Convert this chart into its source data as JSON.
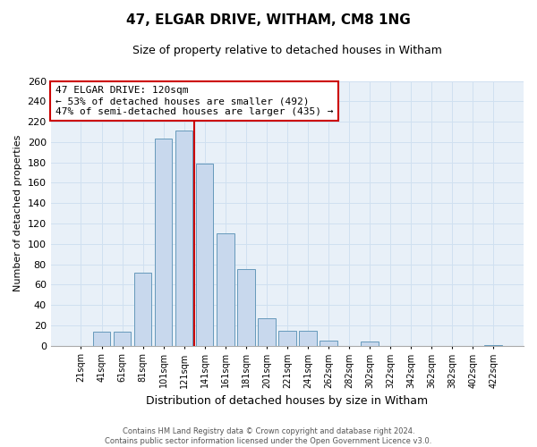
{
  "title": "47, ELGAR DRIVE, WITHAM, CM8 1NG",
  "subtitle": "Size of property relative to detached houses in Witham",
  "xlabel": "Distribution of detached houses by size in Witham",
  "ylabel": "Number of detached properties",
  "bar_labels": [
    "21sqm",
    "41sqm",
    "61sqm",
    "81sqm",
    "101sqm",
    "121sqm",
    "141sqm",
    "161sqm",
    "181sqm",
    "201sqm",
    "221sqm",
    "241sqm",
    "262sqm",
    "282sqm",
    "302sqm",
    "322sqm",
    "342sqm",
    "362sqm",
    "382sqm",
    "402sqm",
    "422sqm"
  ],
  "bar_values": [
    0,
    14,
    14,
    72,
    203,
    211,
    179,
    110,
    75,
    27,
    15,
    15,
    5,
    0,
    4,
    0,
    0,
    0,
    0,
    0,
    1
  ],
  "bar_color": "#c8d8ed",
  "bar_edge_color": "#6699bb",
  "vline_after_index": 5,
  "vline_color": "#cc0000",
  "annotation_title": "47 ELGAR DRIVE: 120sqm",
  "annotation_line1": "← 53% of detached houses are smaller (492)",
  "annotation_line2": "47% of semi-detached houses are larger (435) →",
  "ylim": [
    0,
    260
  ],
  "yticks": [
    0,
    20,
    40,
    60,
    80,
    100,
    120,
    140,
    160,
    180,
    200,
    220,
    240,
    260
  ],
  "footer_line1": "Contains HM Land Registry data © Crown copyright and database right 2024.",
  "footer_line2": "Contains public sector information licensed under the Open Government Licence v3.0.",
  "grid_color": "#d0e0f0",
  "bg_color": "#e8f0f8"
}
